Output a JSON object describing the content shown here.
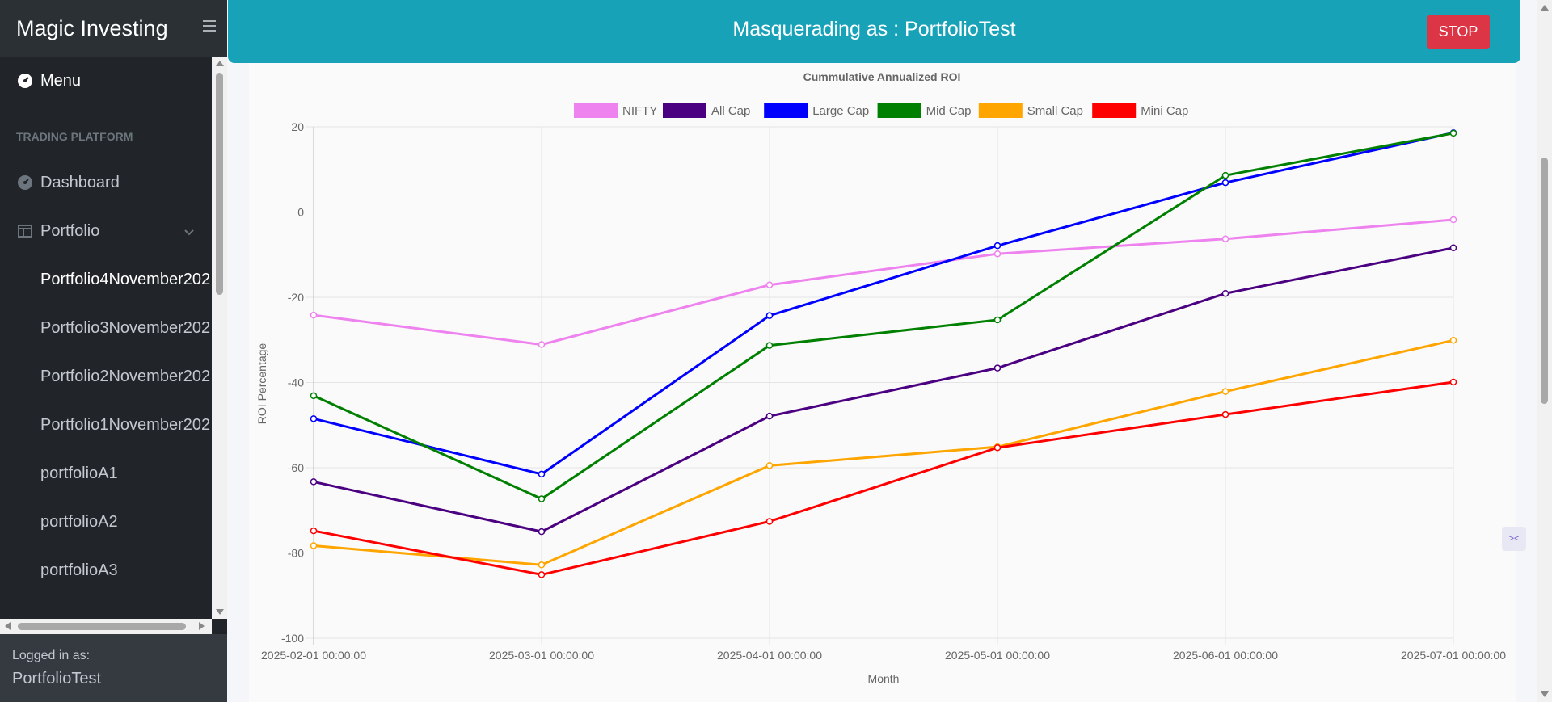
{
  "app": {
    "title": "Magic Investing"
  },
  "sidebar": {
    "menu_label": "Menu",
    "section_header": "TRADING PLATFORM",
    "items": [
      {
        "label": "Dashboard",
        "icon": "gauge-icon"
      },
      {
        "label": "Portfolio",
        "icon": "table-icon"
      }
    ],
    "portfolios": [
      "Portfolio4November202",
      "Portfolio3November202",
      "Portfolio2November202",
      "Portfolio1November202",
      "portfolioA1",
      "portfolioA2",
      "portfolioA3"
    ],
    "footer": {
      "label": "Logged in as:",
      "user": "PortfolioTest"
    }
  },
  "banner": {
    "text": "Masquerading as : PortfolioTest",
    "stop_label": "STOP",
    "color": "#17a2b8",
    "stop_color": "#dc3545"
  },
  "chart_data": {
    "type": "line",
    "title": "Cummulative Annualized ROI",
    "xlabel": "Month",
    "ylabel": "ROI Percentage",
    "ylim": [
      -100,
      20
    ],
    "yticks": [
      20,
      0,
      -20,
      -40,
      -60,
      -80,
      -100
    ],
    "grid": true,
    "legend_position": "top",
    "categories": [
      "2025-02-01 00:00:00",
      "2025-03-01 00:00:00",
      "2025-04-01 00:00:00",
      "2025-05-01 00:00:00",
      "2025-06-01 00:00:00",
      "2025-07-01 00:00:00"
    ],
    "series": [
      {
        "name": "NIFTY",
        "color": "#ee82ee",
        "values": [
          -24.2,
          -31.1,
          -17.1,
          -9.8,
          -6.3,
          -1.8
        ]
      },
      {
        "name": "All Cap",
        "color": "#4b0082",
        "values": [
          -63.3,
          -75.0,
          -47.9,
          -36.6,
          -19.1,
          -8.4
        ]
      },
      {
        "name": "Large Cap",
        "color": "#0000ff",
        "values": [
          -48.5,
          -61.5,
          -24.3,
          -7.9,
          6.9,
          18.6
        ]
      },
      {
        "name": "Mid Cap",
        "color": "#008000",
        "values": [
          -43.1,
          -67.3,
          -31.3,
          -25.3,
          8.6,
          18.5
        ]
      },
      {
        "name": "Small Cap",
        "color": "#ffa500",
        "values": [
          -78.3,
          -82.8,
          -59.5,
          -55.1,
          -42.1,
          -30.1
        ]
      },
      {
        "name": "Mini Cap",
        "color": "#ff0000",
        "values": [
          -74.8,
          -85.1,
          -72.6,
          -55.3,
          -47.5,
          -39.9
        ]
      }
    ]
  }
}
